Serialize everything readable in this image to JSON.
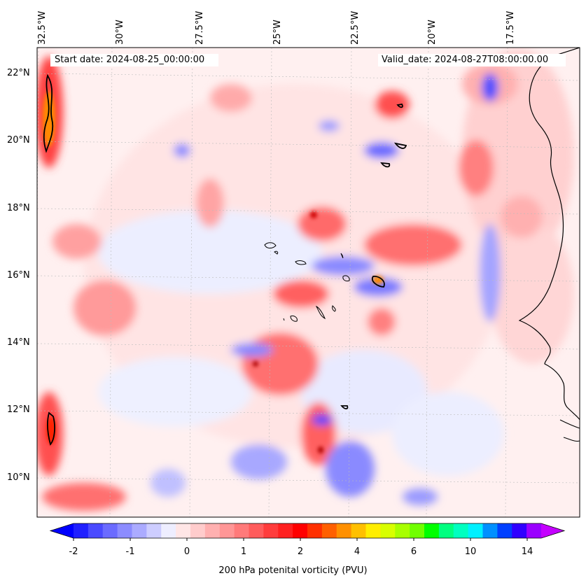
{
  "map": {
    "lon_labels": [
      "32.5°W",
      "30°W",
      "27.5°W",
      "25°W",
      "22.5°W",
      "20°W",
      "17.5°W"
    ],
    "lat_labels": [
      "22°N",
      "20°N",
      "18°N",
      "16°N",
      "14°N",
      "12°N",
      "10°N"
    ],
    "start_date": "Start date: 2024-08-25_00:00:00",
    "valid_date": "Valid_date: 2024-08-27T08:00:00.00",
    "field_name": "200 hPa potenital vorticity (PVU)",
    "colorbar": {
      "tick_labels": [
        "-2",
        "-1",
        "0",
        "1",
        "2",
        "4",
        "6",
        "10",
        "14"
      ],
      "colors": [
        "#0000ff",
        "#2020ff",
        "#4a4aff",
        "#6b6bff",
        "#8c8cff",
        "#ababff",
        "#cdcdff",
        "#eeeeff",
        "#ffe6e6",
        "#ffcccc",
        "#ffb0b0",
        "#ff9696",
        "#ff7a7a",
        "#ff5c5c",
        "#ff3c3c",
        "#ff2020",
        "#ff0000",
        "#ff3000",
        "#ff6000",
        "#ff9000",
        "#ffc000",
        "#ffee00",
        "#d8ff00",
        "#a8ff00",
        "#70ff00",
        "#00ff00",
        "#00ff80",
        "#00ffc0",
        "#00f0ff",
        "#0090ff",
        "#0040ff",
        "#3000ff",
        "#9a00ff",
        "#c400ff"
      ],
      "extend": "both"
    },
    "colors": {
      "neg_strong": "#3535ff",
      "neg_mid": "#8888ff",
      "neg_light": "#cfd2ff",
      "background": "#fff0f0",
      "pos_light": "#ffc4c4",
      "pos_mid": "#ff7070",
      "pos_strong": "#ff1a1a",
      "orange": "#ff8a00",
      "coast": "#000000"
    }
  }
}
